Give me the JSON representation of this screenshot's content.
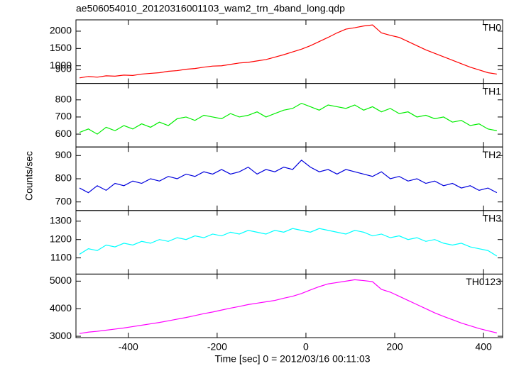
{
  "chart_data": [
    {
      "type": "line",
      "title": "ae506054010_20120316001103_wam2_trn_4band_long.qdp",
      "ylabel": "Counts/sec",
      "x": [
        -510,
        -490,
        -470,
        -450,
        -430,
        -410,
        -390,
        -370,
        -350,
        -330,
        -310,
        -290,
        -270,
        -250,
        -230,
        -210,
        -190,
        -170,
        -150,
        -130,
        -110,
        -90,
        -70,
        -50,
        -30,
        -10,
        10,
        30,
        50,
        70,
        90,
        110,
        130,
        150,
        170,
        190,
        210,
        230,
        250,
        270,
        290,
        310,
        330,
        350,
        370,
        390,
        410,
        430
      ],
      "xlim": [
        -518,
        443
      ],
      "ylim": [
        490,
        2327
      ],
      "yticks": [
        900,
        1000,
        1500,
        2000
      ],
      "series": [
        {
          "name": "TH0",
          "color": "#ff0000",
          "values": [
            650,
            690,
            670,
            710,
            700,
            730,
            720,
            760,
            780,
            800,
            840,
            860,
            900,
            920,
            960,
            990,
            1000,
            1040,
            1080,
            1100,
            1140,
            1180,
            1250,
            1320,
            1400,
            1480,
            1580,
            1700,
            1820,
            1950,
            2060,
            2100,
            2150,
            2180,
            1950,
            1880,
            1820,
            1700,
            1580,
            1460,
            1360,
            1260,
            1160,
            1060,
            960,
            880,
            800,
            760
          ]
        }
      ]
    },
    {
      "type": "line",
      "x": [
        -510,
        -490,
        -470,
        -450,
        -430,
        -410,
        -390,
        -370,
        -350,
        -330,
        -310,
        -290,
        -270,
        -250,
        -230,
        -210,
        -190,
        -170,
        -150,
        -130,
        -110,
        -90,
        -70,
        -50,
        -30,
        -10,
        10,
        30,
        50,
        70,
        90,
        110,
        130,
        150,
        170,
        190,
        210,
        230,
        250,
        270,
        290,
        310,
        330,
        350,
        370,
        390,
        410,
        430
      ],
      "xlim": [
        -518,
        443
      ],
      "ylim": [
        525,
        896
      ],
      "yticks": [
        600,
        700,
        800
      ],
      "series": [
        {
          "name": "TH1",
          "color": "#00ee00",
          "values": [
            610,
            630,
            600,
            640,
            620,
            650,
            630,
            660,
            640,
            670,
            650,
            690,
            700,
            680,
            710,
            700,
            690,
            720,
            700,
            710,
            730,
            700,
            720,
            740,
            750,
            780,
            760,
            740,
            770,
            760,
            750,
            770,
            740,
            760,
            730,
            750,
            720,
            730,
            700,
            710,
            690,
            700,
            670,
            680,
            650,
            660,
            630,
            620
          ]
        }
      ]
    },
    {
      "type": "line",
      "x": [
        -510,
        -490,
        -470,
        -450,
        -430,
        -410,
        -390,
        -370,
        -350,
        -330,
        -310,
        -290,
        -270,
        -250,
        -230,
        -210,
        -190,
        -170,
        -150,
        -130,
        -110,
        -90,
        -70,
        -50,
        -30,
        -10,
        10,
        30,
        50,
        70,
        90,
        110,
        130,
        150,
        170,
        190,
        210,
        230,
        250,
        270,
        290,
        310,
        330,
        350,
        370,
        390,
        410,
        430
      ],
      "xlim": [
        -518,
        443
      ],
      "ylim": [
        663,
        937
      ],
      "yticks": [
        700,
        800,
        900
      ],
      "series": [
        {
          "name": "TH2",
          "color": "#0000dd",
          "values": [
            760,
            740,
            770,
            750,
            780,
            770,
            790,
            780,
            800,
            790,
            810,
            800,
            820,
            810,
            830,
            820,
            840,
            820,
            830,
            850,
            820,
            840,
            830,
            850,
            840,
            880,
            850,
            830,
            840,
            820,
            840,
            830,
            820,
            810,
            830,
            800,
            810,
            790,
            800,
            780,
            790,
            770,
            780,
            760,
            770,
            750,
            760,
            740
          ]
        }
      ]
    },
    {
      "type": "line",
      "x": [
        -510,
        -490,
        -470,
        -450,
        -430,
        -410,
        -390,
        -370,
        -350,
        -330,
        -310,
        -290,
        -270,
        -250,
        -230,
        -210,
        -190,
        -170,
        -150,
        -130,
        -110,
        -90,
        -70,
        -50,
        -30,
        -10,
        10,
        30,
        50,
        70,
        90,
        110,
        130,
        150,
        170,
        190,
        210,
        230,
        250,
        270,
        290,
        310,
        330,
        350,
        370,
        390,
        410,
        430
      ],
      "xlim": [
        -518,
        443
      ],
      "ylim": [
        1012,
        1358
      ],
      "yticks": [
        1100,
        1200,
        1300
      ],
      "series": [
        {
          "name": "TH3",
          "color": "#00ffff",
          "values": [
            1120,
            1150,
            1140,
            1170,
            1160,
            1180,
            1170,
            1190,
            1180,
            1200,
            1190,
            1210,
            1200,
            1220,
            1210,
            1230,
            1220,
            1240,
            1230,
            1250,
            1240,
            1230,
            1250,
            1240,
            1260,
            1250,
            1240,
            1260,
            1250,
            1240,
            1230,
            1250,
            1240,
            1220,
            1230,
            1210,
            1220,
            1200,
            1210,
            1190,
            1200,
            1180,
            1170,
            1180,
            1160,
            1150,
            1140,
            1110
          ]
        }
      ]
    },
    {
      "type": "line",
      "xlabel": "Time [sec] 0 = 2012/03/16 00:11:03",
      "x": [
        -510,
        -490,
        -470,
        -450,
        -430,
        -410,
        -390,
        -370,
        -350,
        -330,
        -310,
        -290,
        -270,
        -250,
        -230,
        -210,
        -190,
        -170,
        -150,
        -130,
        -110,
        -90,
        -70,
        -50,
        -30,
        -10,
        10,
        30,
        50,
        70,
        90,
        110,
        130,
        150,
        170,
        190,
        210,
        230,
        250,
        270,
        290,
        310,
        330,
        350,
        370,
        390,
        410,
        430
      ],
      "xlim": [
        -518,
        443
      ],
      "ylim": [
        2950,
        5256
      ],
      "yticks": [
        3000,
        4000,
        5000
      ],
      "xticks": [
        -400,
        -200,
        0,
        200,
        400
      ],
      "series": [
        {
          "name": "TH0123",
          "color": "#ff00ff",
          "values": [
            3100,
            3150,
            3180,
            3220,
            3260,
            3300,
            3350,
            3400,
            3450,
            3500,
            3560,
            3620,
            3680,
            3750,
            3820,
            3880,
            3950,
            4020,
            4080,
            4150,
            4200,
            4250,
            4300,
            4380,
            4450,
            4550,
            4680,
            4800,
            4900,
            4950,
            5000,
            5050,
            5020,
            4980,
            4700,
            4600,
            4450,
            4300,
            4150,
            4000,
            3850,
            3720,
            3600,
            3480,
            3380,
            3280,
            3200,
            3120
          ]
        }
      ]
    }
  ]
}
